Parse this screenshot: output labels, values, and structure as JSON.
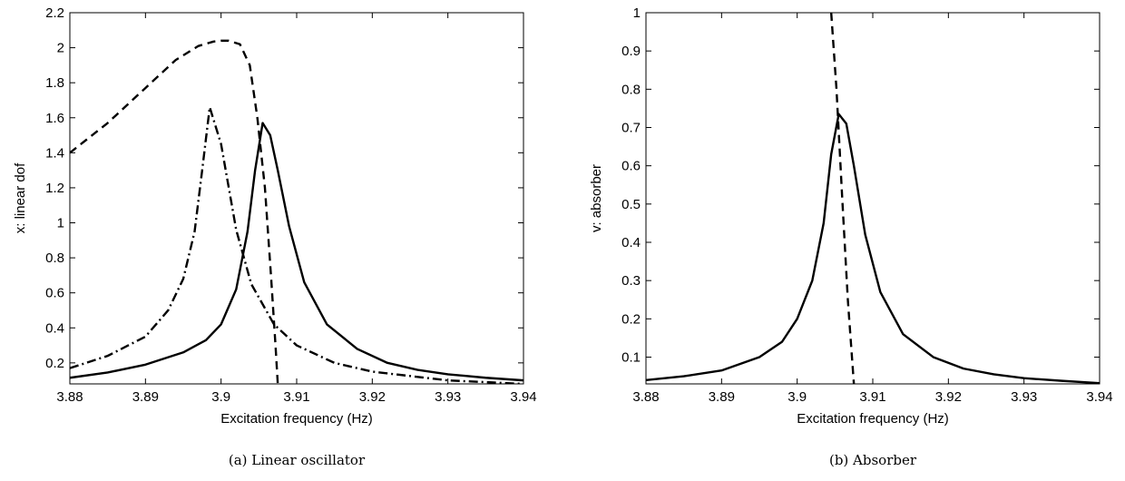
{
  "chart_data": [
    {
      "type": "line",
      "caption": "(a)  Linear oscillator",
      "xlabel": "Excitation frequency (Hz)",
      "ylabel": "x: linear dof",
      "xlim": [
        3.88,
        3.94
      ],
      "ylim": [
        0.08,
        2.2
      ],
      "xticks": [
        3.88,
        3.89,
        3.9,
        3.91,
        3.92,
        3.93,
        3.94
      ],
      "xtick_labels": [
        "3.88",
        "3.89",
        "3.9",
        "3.91",
        "3.92",
        "3.93",
        "3.94"
      ],
      "yticks": [
        0.2,
        0.4,
        0.6,
        0.8,
        1,
        1.2,
        1.4,
        1.6,
        1.8,
        2,
        2.2
      ],
      "ytick_labels": [
        "0.2",
        "0.4",
        "0.6",
        "0.8",
        "1",
        "1.2",
        "1.4",
        "1.6",
        "1.8",
        "2",
        "2.2"
      ],
      "grid": false,
      "series": [
        {
          "style": "solid",
          "x": [
            3.88,
            3.885,
            3.89,
            3.895,
            3.898,
            3.9,
            3.902,
            3.9035,
            3.9045,
            3.9055,
            3.9065,
            3.9075,
            3.909,
            3.911,
            3.914,
            3.918,
            3.922,
            3.926,
            3.93,
            3.935,
            3.94
          ],
          "y": [
            0.115,
            0.145,
            0.19,
            0.26,
            0.33,
            0.42,
            0.62,
            0.95,
            1.3,
            1.57,
            1.5,
            1.3,
            0.98,
            0.66,
            0.42,
            0.28,
            0.2,
            0.16,
            0.135,
            0.115,
            0.1
          ]
        },
        {
          "style": "dash-dot",
          "x": [
            3.88,
            3.885,
            3.89,
            3.893,
            3.895,
            3.8965,
            3.8975,
            3.8985,
            3.9,
            3.902,
            3.904,
            3.907,
            3.91,
            3.915,
            3.92,
            3.93,
            3.94
          ],
          "y": [
            0.17,
            0.24,
            0.35,
            0.5,
            0.68,
            0.95,
            1.3,
            1.66,
            1.45,
            0.96,
            0.65,
            0.42,
            0.3,
            0.2,
            0.15,
            0.1,
            0.08
          ]
        },
        {
          "style": "dashed",
          "x": [
            3.88,
            3.885,
            3.89,
            3.894,
            3.897,
            3.899,
            3.9,
            3.901,
            3.9025,
            3.9038,
            3.9048,
            3.9058,
            3.9066,
            3.9072,
            3.9075
          ],
          "y": [
            1.4,
            1.57,
            1.77,
            1.93,
            2.01,
            2.035,
            2.04,
            2.04,
            2.02,
            1.9,
            1.6,
            1.2,
            0.7,
            0.3,
            0.08
          ]
        }
      ]
    },
    {
      "type": "line",
      "caption": "(b)  Absorber",
      "xlabel": "Excitation frequency (Hz)",
      "ylabel": "v: absorber",
      "xlim": [
        3.88,
        3.94
      ],
      "ylim": [
        0.03,
        1
      ],
      "xticks": [
        3.88,
        3.89,
        3.9,
        3.91,
        3.92,
        3.93,
        3.94
      ],
      "xtick_labels": [
        "3.88",
        "3.89",
        "3.9",
        "3.91",
        "3.92",
        "3.93",
        "3.94"
      ],
      "yticks": [
        0.1,
        0.2,
        0.3,
        0.4,
        0.5,
        0.6,
        0.7,
        0.8,
        0.9,
        1
      ],
      "ytick_labels": [
        "0.1",
        "0.2",
        "0.3",
        "0.4",
        "0.5",
        "0.6",
        "0.7",
        "0.8",
        "0.9",
        "1"
      ],
      "grid": false,
      "series": [
        {
          "style": "solid",
          "x": [
            3.88,
            3.885,
            3.89,
            3.895,
            3.898,
            3.9,
            3.902,
            3.9035,
            3.9045,
            3.9055,
            3.9065,
            3.9075,
            3.909,
            3.911,
            3.914,
            3.918,
            3.922,
            3.926,
            3.93,
            3.935,
            3.94
          ],
          "y": [
            0.04,
            0.05,
            0.065,
            0.1,
            0.14,
            0.2,
            0.3,
            0.45,
            0.63,
            0.735,
            0.71,
            0.6,
            0.42,
            0.27,
            0.16,
            0.1,
            0.07,
            0.055,
            0.045,
            0.038,
            0.032
          ]
        },
        {
          "style": "dashed",
          "x": [
            3.9045,
            3.9052,
            3.906,
            3.9067,
            3.9075
          ],
          "y": [
            1,
            0.8,
            0.5,
            0.25,
            0.03
          ]
        }
      ]
    }
  ]
}
